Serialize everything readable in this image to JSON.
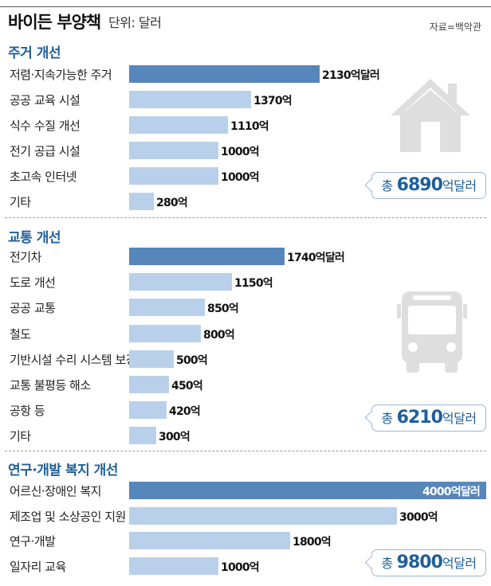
{
  "header": {
    "title": "바이든 부양책",
    "unit": "단위: 달러",
    "source": "자료=백악관"
  },
  "chart_data": {
    "type": "bar",
    "orientation": "horizontal",
    "title": "바이든 부양책",
    "unit": "단위: 달러",
    "value_unit": "억",
    "xlim": [
      0,
      4000
    ],
    "sections": [
      {
        "id": "housing",
        "title": "주거 개선",
        "icon": "house-icon",
        "total": {
          "prefix": "총",
          "value": "6890",
          "suffix": "억달러"
        },
        "items": [
          {
            "label": "저렴·지속가능한 주거",
            "value": 2130,
            "value_text": "2130억달러",
            "highlight": true
          },
          {
            "label": "공공 교육 시설",
            "value": 1370,
            "value_text": "1370억"
          },
          {
            "label": "식수 수질 개선",
            "value": 1110,
            "value_text": "1110억"
          },
          {
            "label": "전기 공급 시설",
            "value": 1000,
            "value_text": "1000억"
          },
          {
            "label": "초고속 인터넷",
            "value": 1000,
            "value_text": "1000억"
          },
          {
            "label": "기타",
            "value": 280,
            "value_text": "280억"
          }
        ]
      },
      {
        "id": "transport",
        "title": "교통 개선",
        "icon": "bus-icon",
        "total": {
          "prefix": "총",
          "value": "6210",
          "suffix": "억달러"
        },
        "items": [
          {
            "label": "전기차",
            "value": 1740,
            "value_text": "1740억달러",
            "highlight": true
          },
          {
            "label": "도로 개선",
            "value": 1150,
            "value_text": "1150억"
          },
          {
            "label": "공공 교통",
            "value": 850,
            "value_text": "850억"
          },
          {
            "label": "철도",
            "value": 800,
            "value_text": "800억"
          },
          {
            "label": "기반시설 수리 시스템 보강",
            "value": 500,
            "value_text": "500억"
          },
          {
            "label": "교통 불평등 해소",
            "value": 450,
            "value_text": "450억"
          },
          {
            "label": "공항 등",
            "value": 420,
            "value_text": "420억"
          },
          {
            "label": "기타",
            "value": 300,
            "value_text": "300억"
          }
        ]
      },
      {
        "id": "welfare",
        "title": "연구·개발 복지 개선",
        "icon": "",
        "total": {
          "prefix": "총",
          "value": "9800",
          "suffix": "억달러"
        },
        "items": [
          {
            "label": "어르신·장애인 복지",
            "value": 4000,
            "value_text": "4000억달러",
            "highlight": true
          },
          {
            "label": "제조업 및 소상공인 지원",
            "value": 3000,
            "value_text": "3000억"
          },
          {
            "label": "연구·개발",
            "value": 1800,
            "value_text": "1800억"
          },
          {
            "label": "일자리 교육",
            "value": 1000,
            "value_text": "1000억"
          }
        ]
      }
    ]
  }
}
